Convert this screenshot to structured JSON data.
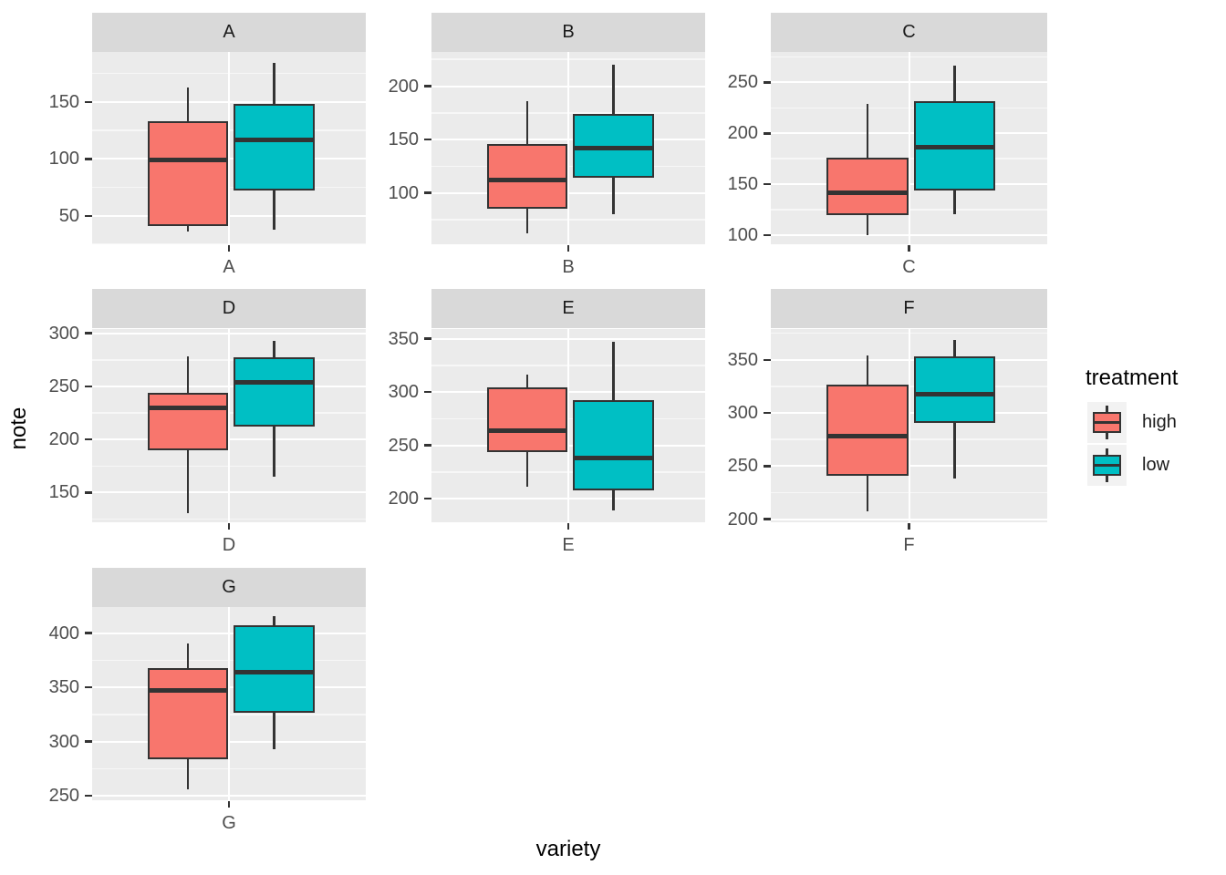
{
  "figure": {
    "xlabel": "variety",
    "ylabel": "note",
    "legend": {
      "title": "treatment",
      "entries": [
        {
          "label": "high",
          "color": "#F8766D"
        },
        {
          "label": "low",
          "color": "#00BFC4"
        }
      ]
    }
  },
  "theme": {
    "background": "#FFFFFF",
    "panel_bg": "#EBEBEB",
    "strip_bg": "#D9D9D9",
    "grid_major": "#FFFFFF",
    "box_border": "#333333",
    "tick_label_color": "#4D4D4D",
    "legend_key_bg": "#F2F2F2",
    "high_fill": "#F8766D",
    "low_fill": "#00BFC4"
  },
  "chart_data": {
    "type": "boxplot",
    "title": "",
    "xlabel": "variety",
    "ylabel": "note",
    "facet_variable": "variety",
    "fill_variable": "treatment",
    "legend_position": "right",
    "grid": true,
    "series_names": [
      "high",
      "low"
    ],
    "facets": [
      {
        "label": "A",
        "ylim": [
          25,
          194
        ],
        "ticks": [
          50,
          100,
          150
        ],
        "minor_ticks": [
          25,
          75,
          125,
          175
        ],
        "boxes": [
          {
            "name": "high",
            "whislo": 36,
            "q1": 41,
            "med": 99,
            "q3": 133,
            "whishi": 163
          },
          {
            "name": "low",
            "whislo": 38,
            "q1": 72,
            "med": 117,
            "q3": 148,
            "whishi": 184
          }
        ]
      },
      {
        "label": "B",
        "ylim": [
          52,
          232
        ],
        "ticks": [
          100,
          150,
          200
        ],
        "minor_ticks": [
          75,
          125,
          175,
          225
        ],
        "boxes": [
          {
            "name": "high",
            "whislo": 62,
            "q1": 85,
            "med": 112,
            "q3": 146,
            "whishi": 186
          },
          {
            "name": "low",
            "whislo": 80,
            "q1": 114,
            "med": 142,
            "q3": 174,
            "whishi": 220
          }
        ]
      },
      {
        "label": "C",
        "ylim": [
          91,
          280
        ],
        "ticks": [
          100,
          150,
          200,
          250
        ],
        "minor_ticks": [
          125,
          175,
          225,
          275
        ],
        "boxes": [
          {
            "name": "high",
            "whislo": 100,
            "q1": 120,
            "med": 142,
            "q3": 176,
            "whishi": 229
          },
          {
            "name": "low",
            "whislo": 121,
            "q1": 144,
            "med": 186,
            "q3": 232,
            "whishi": 267
          }
        ]
      },
      {
        "label": "D",
        "ylim": [
          122,
          304
        ],
        "ticks": [
          150,
          200,
          250,
          300
        ],
        "minor_ticks": [
          125,
          175,
          225,
          275
        ],
        "boxes": [
          {
            "name": "high",
            "whislo": 131,
            "q1": 190,
            "med": 230,
            "q3": 244,
            "whishi": 278
          },
          {
            "name": "low",
            "whislo": 165,
            "q1": 212,
            "med": 254,
            "q3": 277,
            "whishi": 293
          }
        ]
      },
      {
        "label": "E",
        "ylim": [
          178,
          359
        ],
        "ticks": [
          200,
          250,
          300,
          350
        ],
        "minor_ticks": [
          225,
          275,
          325
        ],
        "boxes": [
          {
            "name": "high",
            "whislo": 211,
            "q1": 244,
            "med": 264,
            "q3": 304,
            "whishi": 316
          },
          {
            "name": "low",
            "whislo": 189,
            "q1": 208,
            "med": 238,
            "q3": 292,
            "whishi": 347
          }
        ]
      },
      {
        "label": "F",
        "ylim": [
          197,
          379
        ],
        "ticks": [
          200,
          250,
          300,
          350
        ],
        "minor_ticks": [
          225,
          275,
          325,
          375
        ],
        "boxes": [
          {
            "name": "high",
            "whislo": 207,
            "q1": 241,
            "med": 278,
            "q3": 327,
            "whishi": 354
          },
          {
            "name": "low",
            "whislo": 238,
            "q1": 291,
            "med": 318,
            "q3": 353,
            "whishi": 369
          }
        ]
      },
      {
        "label": "G",
        "ylim": [
          246,
          424
        ],
        "ticks": [
          250,
          300,
          350,
          400
        ],
        "minor_ticks": [
          275,
          325,
          375
        ],
        "boxes": [
          {
            "name": "high",
            "whislo": 256,
            "q1": 284,
            "med": 347,
            "q3": 368,
            "whishi": 390
          },
          {
            "name": "low",
            "whislo": 293,
            "q1": 327,
            "med": 364,
            "q3": 407,
            "whishi": 416
          }
        ]
      }
    ]
  }
}
